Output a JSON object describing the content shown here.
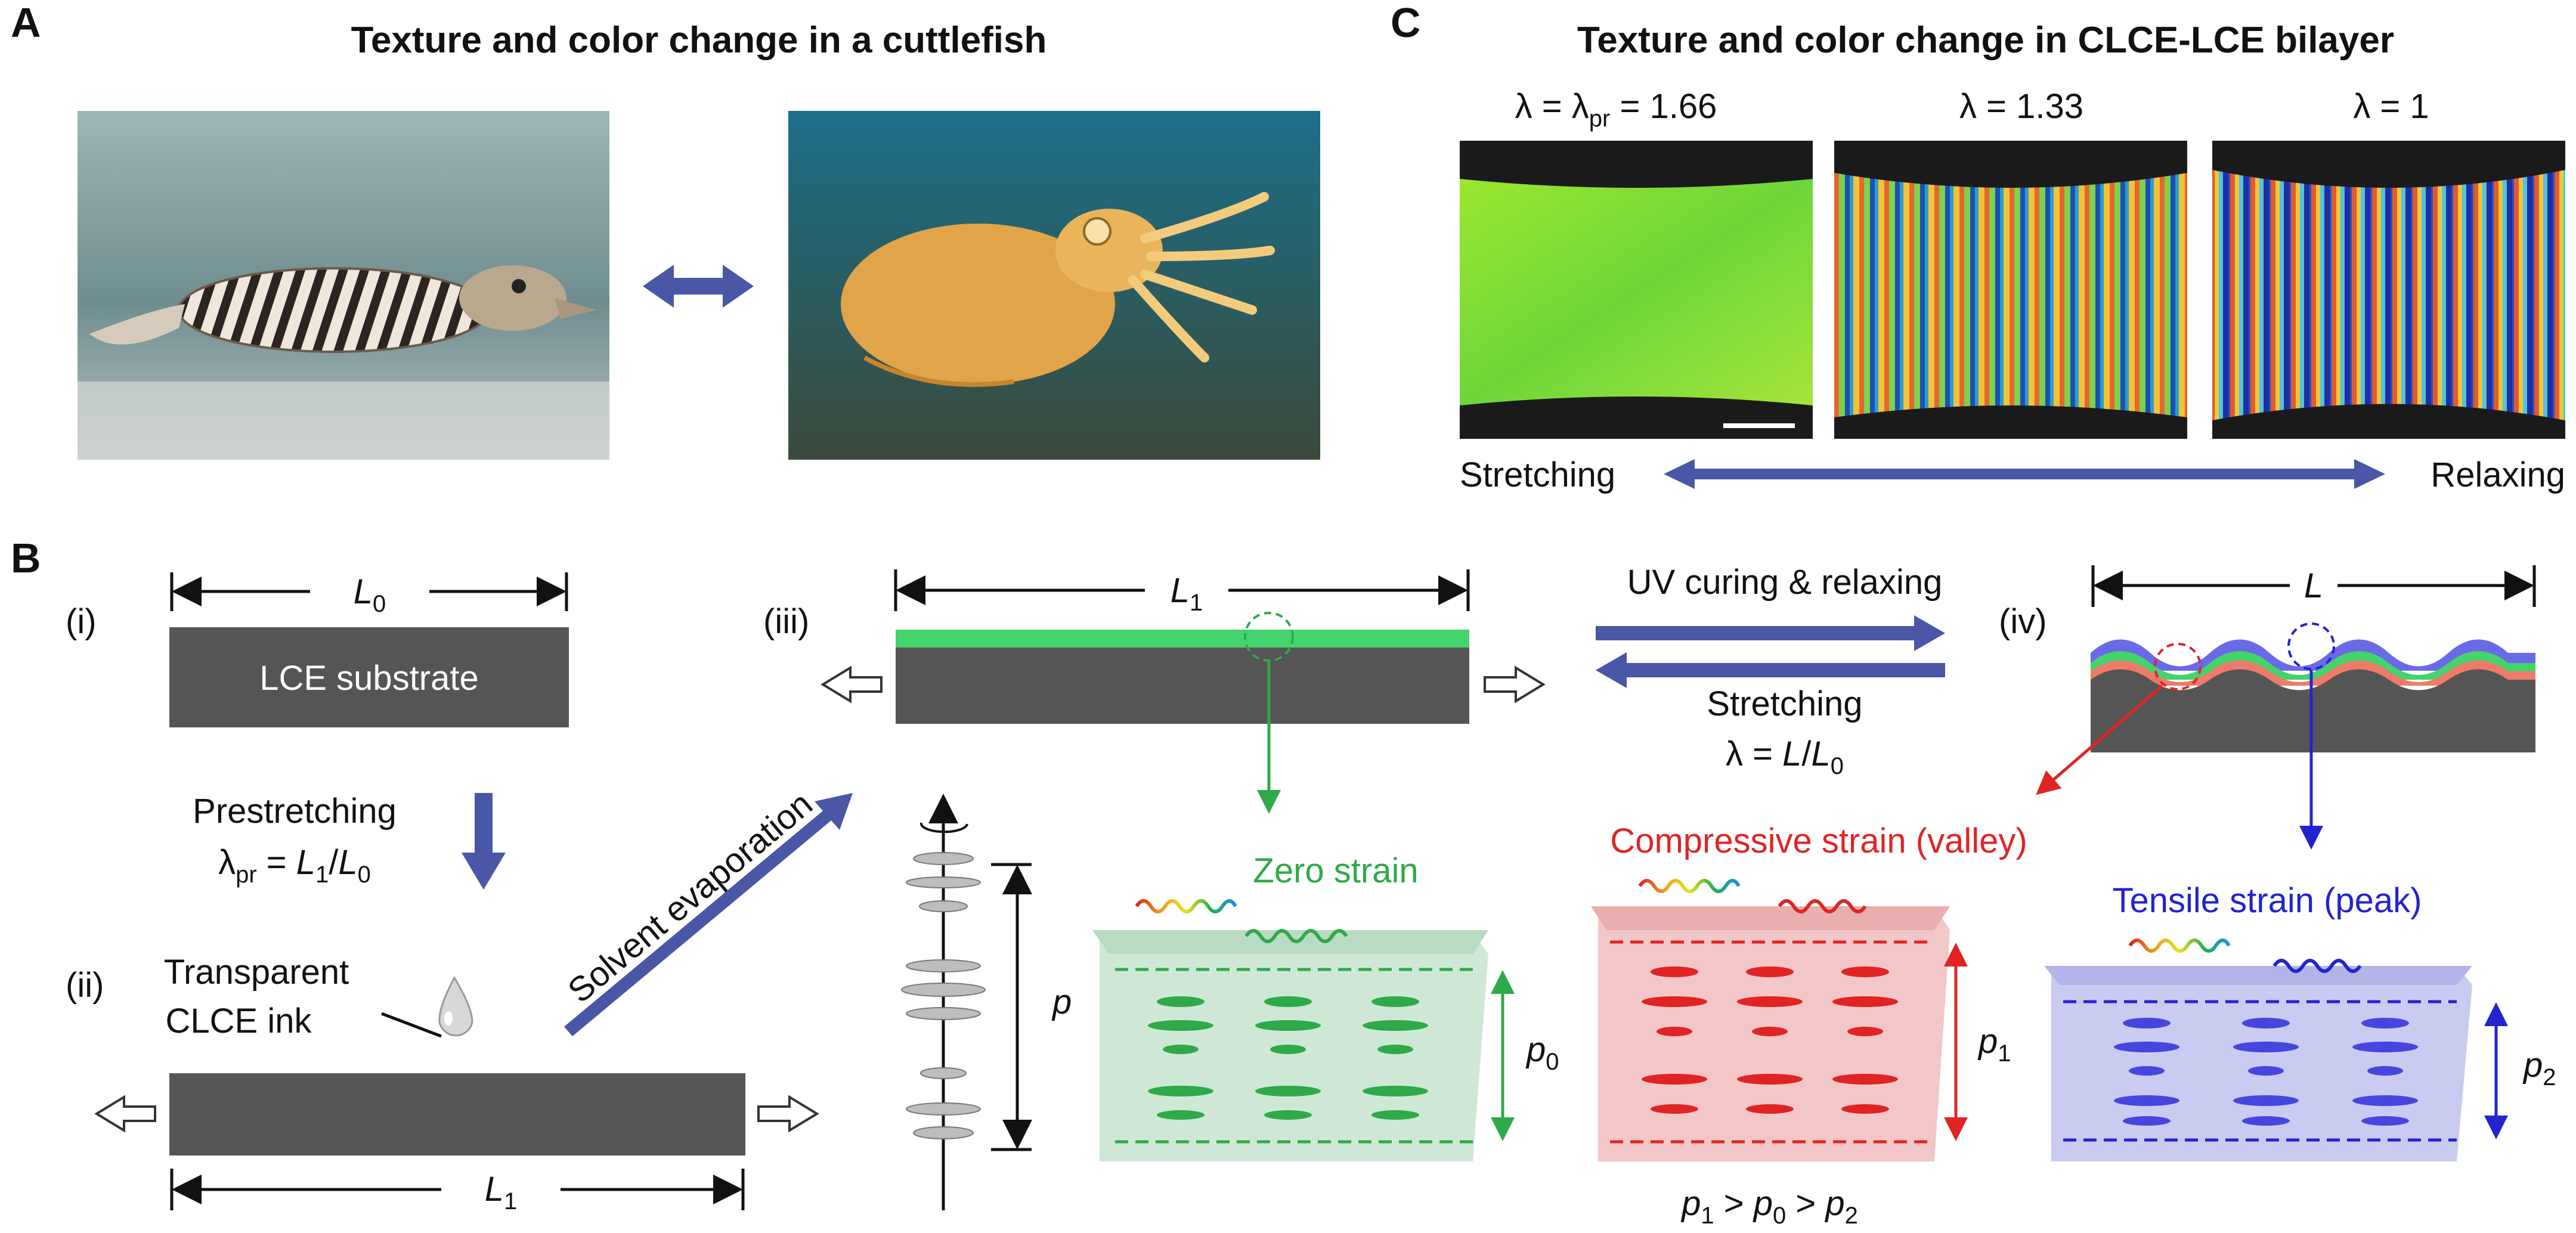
{
  "panels": {
    "a": {
      "letter": "A",
      "title": "Texture and color change in a cuttlefish",
      "photo_left": "cuttlefish-striped-photo",
      "photo_right": "cuttlefish-textured-photo"
    },
    "b": {
      "letter": "B",
      "step_i": "(i)",
      "step_ii": "(ii)",
      "step_iii": "(iii)",
      "step_iv": "(iv)",
      "substrate_label": "LCE substrate",
      "length_L0": "L",
      "length_L0_sub": "0",
      "length_L1": "L",
      "length_L1_sub": "1",
      "length_L": "L",
      "prestretching": "Prestretching",
      "lambda_pr_symbol": "λ",
      "lambda_pr_sub": "pr",
      "lambda_pr_eq": " = ",
      "ratio_num": "L",
      "ratio_num_sub": "1",
      "ratio_slash": "/",
      "ratio_den": "L",
      "ratio_den_sub": "0",
      "ink_line1": "Transparent",
      "ink_line2": "CLCE ink",
      "solvent": "Solvent evaporation",
      "uv_curing": "UV curing & relaxing",
      "stretching": "Stretching",
      "lambda_eq": "λ = ",
      "lambda_L": "L",
      "lambda_slash": "/",
      "lambda_L0": "L",
      "lambda_L0_sub": "0",
      "pitch_p": "p",
      "zero_strain": "Zero strain",
      "compressive": "Compressive strain (valley)",
      "tensile": "Tensile strain (peak)",
      "p0": "p",
      "p0_sub": "0",
      "p1": "p",
      "p1_sub": "1",
      "p2": "p",
      "p2_sub": "2",
      "relation": [
        "p",
        "1",
        " > ",
        "p",
        "0",
        " > ",
        "p",
        "2"
      ]
    },
    "c": {
      "letter": "C",
      "title": "Texture and color change in CLCE-LCE bilayer",
      "lambda1_prefix": "λ = λ",
      "lambda1_sub": "pr",
      "lambda1_value": " = 1.66",
      "lambda2": "λ = 1.33",
      "lambda3": "λ = 1",
      "stretching": "Stretching",
      "relaxing": "Relaxing"
    }
  },
  "colors": {
    "arrow": "#4a56a6",
    "substrate": "#555555",
    "green": "#2eaa48",
    "red": "#e02424",
    "blue": "#2323d0",
    "zero_box": "#cfe8d6",
    "comp_box": "#f3c7c7",
    "tens_box": "#c9cbf1"
  }
}
